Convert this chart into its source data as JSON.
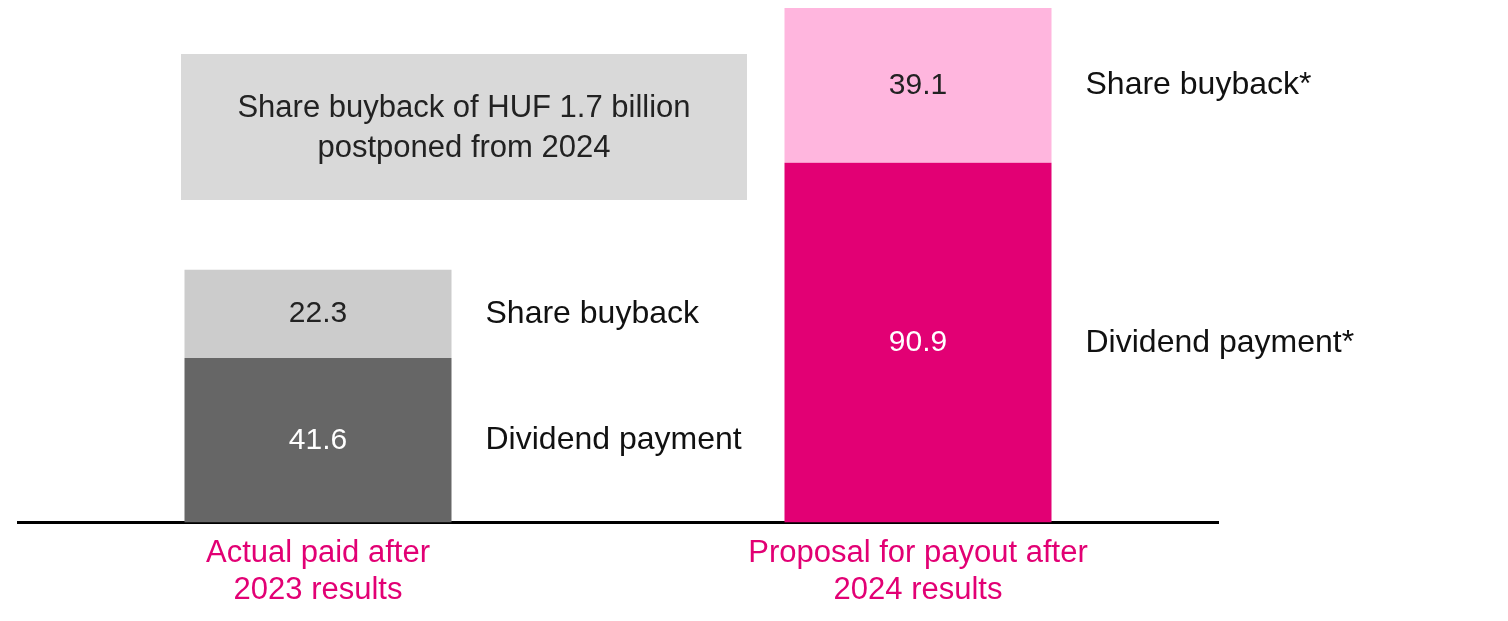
{
  "chart_data": {
    "type": "bar",
    "stacked": true,
    "categories": [
      "Actual paid after 2023 results",
      "Proposal for payout after 2024 results"
    ],
    "series": [
      {
        "colors": [
          "#666666",
          "#e20074"
        ],
        "values": [
          41.6,
          90.9
        ]
      },
      {
        "colors": [
          "#cccccc",
          "#ffb6de"
        ],
        "values": [
          22.3,
          39.1
        ]
      }
    ],
    "data_labels": true,
    "legend": false,
    "grid": false,
    "annotations": [
      "Share buyback of HUF 1.7 billion postponed from 2024",
      "Dividend payment",
      "Share buyback",
      "Dividend payment*",
      "Share buyback*"
    ]
  }
}
